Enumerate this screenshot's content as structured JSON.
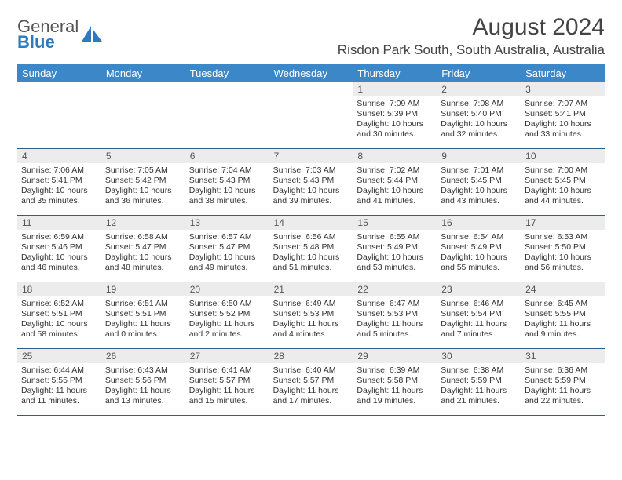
{
  "brand": {
    "name_a": "General",
    "name_b": "Blue"
  },
  "title": "August 2024",
  "location": "Risdon Park South, South Australia, Australia",
  "colors": {
    "header_bg": "#3b87c8",
    "header_text": "#ffffff",
    "daynum_bg": "#ececec",
    "week_border": "#2a5f8e",
    "brand_blue": "#2d7ac0"
  },
  "day_labels": [
    "Sunday",
    "Monday",
    "Tuesday",
    "Wednesday",
    "Thursday",
    "Friday",
    "Saturday"
  ],
  "weeks": [
    [
      {
        "empty": true
      },
      {
        "empty": true
      },
      {
        "empty": true
      },
      {
        "empty": true
      },
      {
        "d": "1",
        "sunrise": "7:09 AM",
        "sunset": "5:39 PM",
        "daylight": "10 hours and 30 minutes."
      },
      {
        "d": "2",
        "sunrise": "7:08 AM",
        "sunset": "5:40 PM",
        "daylight": "10 hours and 32 minutes."
      },
      {
        "d": "3",
        "sunrise": "7:07 AM",
        "sunset": "5:41 PM",
        "daylight": "10 hours and 33 minutes."
      }
    ],
    [
      {
        "d": "4",
        "sunrise": "7:06 AM",
        "sunset": "5:41 PM",
        "daylight": "10 hours and 35 minutes."
      },
      {
        "d": "5",
        "sunrise": "7:05 AM",
        "sunset": "5:42 PM",
        "daylight": "10 hours and 36 minutes."
      },
      {
        "d": "6",
        "sunrise": "7:04 AM",
        "sunset": "5:43 PM",
        "daylight": "10 hours and 38 minutes."
      },
      {
        "d": "7",
        "sunrise": "7:03 AM",
        "sunset": "5:43 PM",
        "daylight": "10 hours and 39 minutes."
      },
      {
        "d": "8",
        "sunrise": "7:02 AM",
        "sunset": "5:44 PM",
        "daylight": "10 hours and 41 minutes."
      },
      {
        "d": "9",
        "sunrise": "7:01 AM",
        "sunset": "5:45 PM",
        "daylight": "10 hours and 43 minutes."
      },
      {
        "d": "10",
        "sunrise": "7:00 AM",
        "sunset": "5:45 PM",
        "daylight": "10 hours and 44 minutes."
      }
    ],
    [
      {
        "d": "11",
        "sunrise": "6:59 AM",
        "sunset": "5:46 PM",
        "daylight": "10 hours and 46 minutes."
      },
      {
        "d": "12",
        "sunrise": "6:58 AM",
        "sunset": "5:47 PM",
        "daylight": "10 hours and 48 minutes."
      },
      {
        "d": "13",
        "sunrise": "6:57 AM",
        "sunset": "5:47 PM",
        "daylight": "10 hours and 49 minutes."
      },
      {
        "d": "14",
        "sunrise": "6:56 AM",
        "sunset": "5:48 PM",
        "daylight": "10 hours and 51 minutes."
      },
      {
        "d": "15",
        "sunrise": "6:55 AM",
        "sunset": "5:49 PM",
        "daylight": "10 hours and 53 minutes."
      },
      {
        "d": "16",
        "sunrise": "6:54 AM",
        "sunset": "5:49 PM",
        "daylight": "10 hours and 55 minutes."
      },
      {
        "d": "17",
        "sunrise": "6:53 AM",
        "sunset": "5:50 PM",
        "daylight": "10 hours and 56 minutes."
      }
    ],
    [
      {
        "d": "18",
        "sunrise": "6:52 AM",
        "sunset": "5:51 PM",
        "daylight": "10 hours and 58 minutes."
      },
      {
        "d": "19",
        "sunrise": "6:51 AM",
        "sunset": "5:51 PM",
        "daylight": "11 hours and 0 minutes."
      },
      {
        "d": "20",
        "sunrise": "6:50 AM",
        "sunset": "5:52 PM",
        "daylight": "11 hours and 2 minutes."
      },
      {
        "d": "21",
        "sunrise": "6:49 AM",
        "sunset": "5:53 PM",
        "daylight": "11 hours and 4 minutes."
      },
      {
        "d": "22",
        "sunrise": "6:47 AM",
        "sunset": "5:53 PM",
        "daylight": "11 hours and 5 minutes."
      },
      {
        "d": "23",
        "sunrise": "6:46 AM",
        "sunset": "5:54 PM",
        "daylight": "11 hours and 7 minutes."
      },
      {
        "d": "24",
        "sunrise": "6:45 AM",
        "sunset": "5:55 PM",
        "daylight": "11 hours and 9 minutes."
      }
    ],
    [
      {
        "d": "25",
        "sunrise": "6:44 AM",
        "sunset": "5:55 PM",
        "daylight": "11 hours and 11 minutes."
      },
      {
        "d": "26",
        "sunrise": "6:43 AM",
        "sunset": "5:56 PM",
        "daylight": "11 hours and 13 minutes."
      },
      {
        "d": "27",
        "sunrise": "6:41 AM",
        "sunset": "5:57 PM",
        "daylight": "11 hours and 15 minutes."
      },
      {
        "d": "28",
        "sunrise": "6:40 AM",
        "sunset": "5:57 PM",
        "daylight": "11 hours and 17 minutes."
      },
      {
        "d": "29",
        "sunrise": "6:39 AM",
        "sunset": "5:58 PM",
        "daylight": "11 hours and 19 minutes."
      },
      {
        "d": "30",
        "sunrise": "6:38 AM",
        "sunset": "5:59 PM",
        "daylight": "11 hours and 21 minutes."
      },
      {
        "d": "31",
        "sunrise": "6:36 AM",
        "sunset": "5:59 PM",
        "daylight": "11 hours and 22 minutes."
      }
    ]
  ],
  "labels": {
    "sunrise_prefix": "Sunrise: ",
    "sunset_prefix": "Sunset: ",
    "daylight_prefix": "Daylight: "
  }
}
